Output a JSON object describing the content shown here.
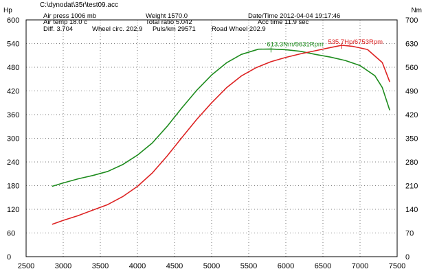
{
  "header": {
    "file_path": "C:\\dynodat\\35r\\test09.acc",
    "air_press": "Air press  1006 mb",
    "weight": "Weight   1570.0",
    "datetime": "Date/Time  2012-04-04 19:17:46",
    "air_temp": "Air temp   18.0 c",
    "total_ratio": "Total ratio 5.042",
    "acc_time": "Acc time   11.9 sec",
    "diff": "Diff.     3.704",
    "wheel_circ": "Wheel circ. 202.9",
    "puls_km": "Puls/km   29571",
    "road_wheel": "Road Wheel 202.9"
  },
  "chart_data": {
    "type": "line",
    "x_ticks": [
      2500,
      3000,
      3500,
      4000,
      4500,
      5000,
      5500,
      6000,
      6500,
      7000,
      7500
    ],
    "xlim": [
      2500,
      7500
    ],
    "left_axis": {
      "label": "Hp",
      "ylim": [
        0,
        600
      ],
      "ticks": [
        0,
        60,
        120,
        180,
        240,
        300,
        360,
        420,
        480,
        540,
        600
      ]
    },
    "right_axis": {
      "label": "Nm",
      "ylim": [
        0,
        700
      ],
      "ticks": [
        0,
        70,
        140,
        210,
        280,
        350,
        420,
        490,
        560,
        630,
        700
      ]
    },
    "grid": "dotted",
    "series": [
      {
        "axis": "right",
        "color": "#1e8c1e",
        "x": [
          2850,
          3000,
          3200,
          3400,
          3600,
          3800,
          4000,
          4200,
          4400,
          4600,
          4800,
          5000,
          5200,
          5400,
          5631,
          5800,
          6000,
          6200,
          6400,
          6600,
          6800,
          7000,
          7200,
          7300,
          7400
        ],
        "values": [
          208,
          218,
          230,
          240,
          252,
          272,
          300,
          336,
          385,
          440,
          492,
          537,
          573,
          598,
          613.3,
          614,
          612,
          607,
          598,
          590,
          580,
          565,
          535,
          500,
          433
        ],
        "peak_label": "613.3Nm/5631Rpm"
      },
      {
        "axis": "left",
        "color": "#dd2222",
        "x": [
          2850,
          3000,
          3200,
          3400,
          3600,
          3800,
          4000,
          4200,
          4400,
          4600,
          4800,
          5000,
          5200,
          5400,
          5600,
          5800,
          6000,
          6200,
          6400,
          6600,
          6753,
          6900,
          7100,
          7300,
          7400
        ],
        "values": [
          82,
          92,
          104,
          118,
          132,
          152,
          178,
          212,
          255,
          302,
          348,
          390,
          428,
          458,
          479,
          494,
          505,
          514,
          522,
          530,
          535.7,
          533,
          525,
          492,
          443
        ],
        "peak_label": "535.7Hp/6753Rpm"
      }
    ]
  }
}
